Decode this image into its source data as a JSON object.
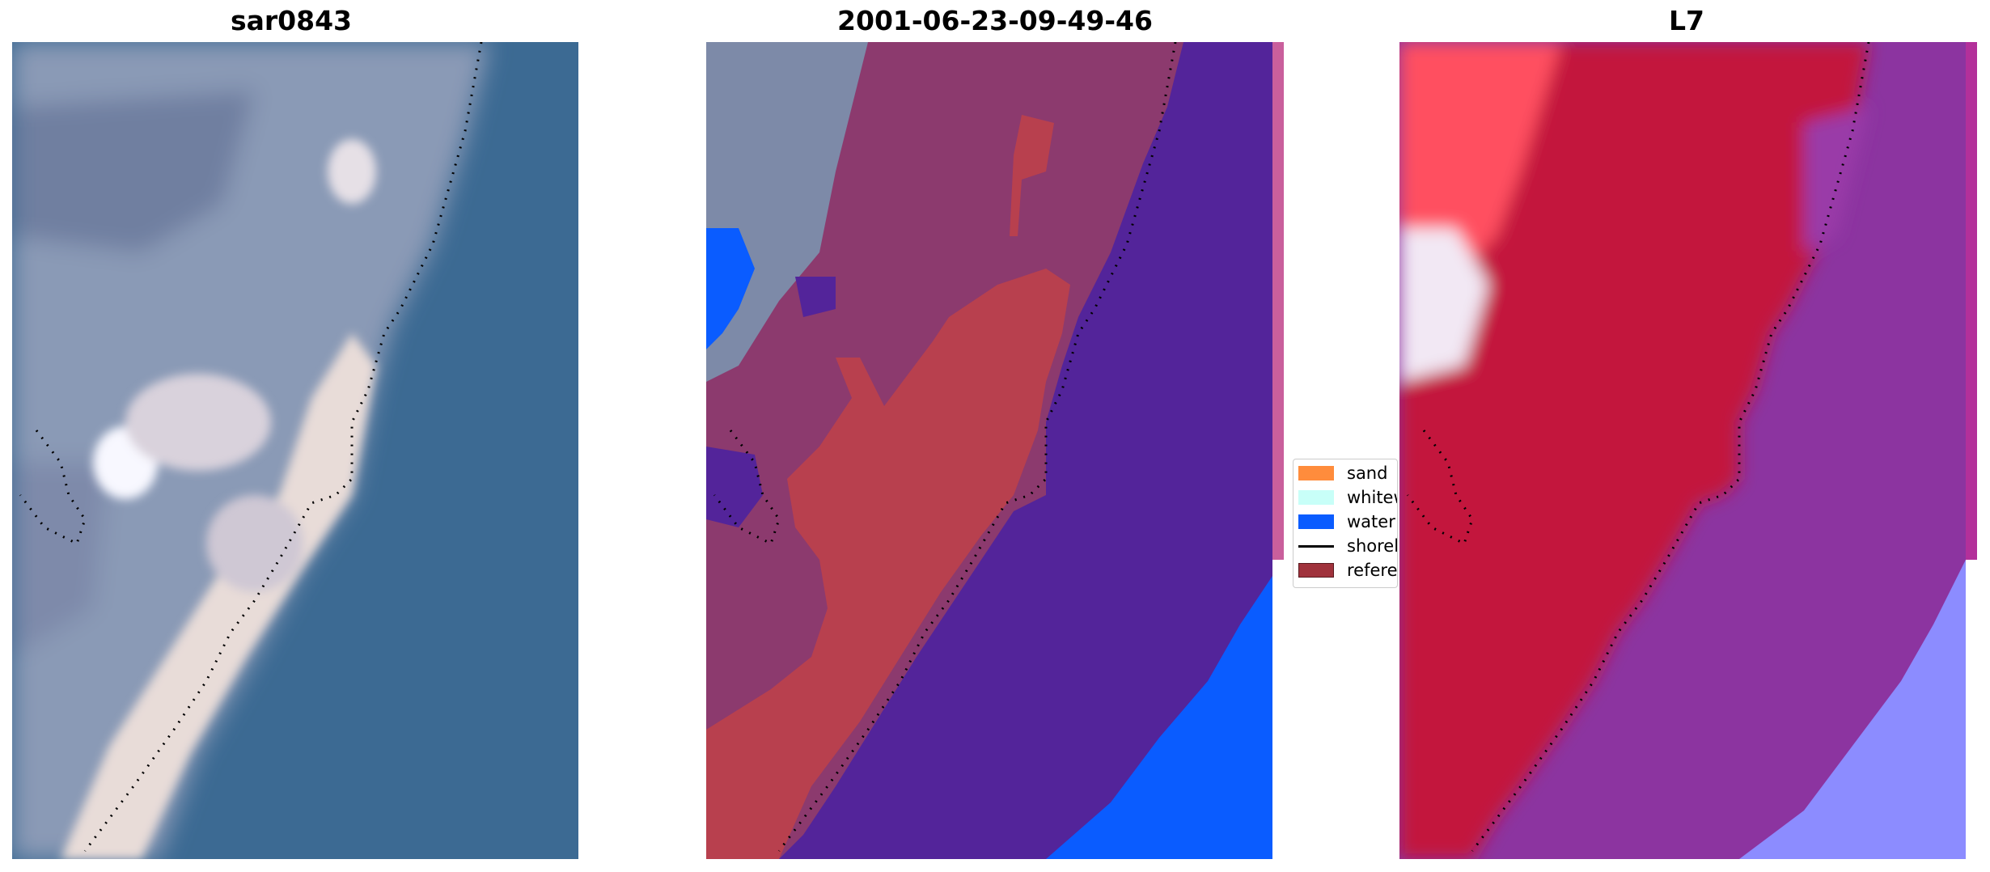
{
  "panels": [
    {
      "title": "sar0843"
    },
    {
      "title": "2001-06-23-09-49-46"
    },
    {
      "title": "L7"
    }
  ],
  "legend": {
    "items": [
      {
        "label": "sand",
        "color": "#ff8c3c",
        "kind": "patch"
      },
      {
        "label": "whitewater",
        "color": "#c8fff8",
        "kind": "patch"
      },
      {
        "label": "water",
        "color": "#0a5cff",
        "kind": "patch"
      },
      {
        "label": "shoreline",
        "color": "#000000",
        "kind": "line"
      },
      {
        "label": "reference shoreline",
        "color": "#a0323c",
        "kind": "patch"
      }
    ]
  },
  "colors": {
    "ocean": "#3d6b94",
    "land": "#8a9bb8",
    "sand_white": "#efe4e0",
    "classified_land": "#8c3a6e",
    "classified_sand": "#b8404e",
    "classified_water": "#53249a",
    "mndwi_land": "#c3153e",
    "mndwi_water": "#8c34a0"
  }
}
